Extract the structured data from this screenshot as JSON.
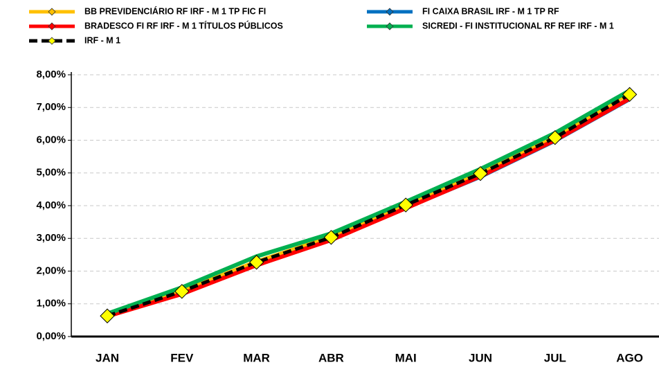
{
  "chart_data": {
    "type": "line",
    "categories": [
      "JAN",
      "FEV",
      "MAR",
      "ABR",
      "MAI",
      "JUN",
      "JUL",
      "AGO"
    ],
    "series": [
      {
        "name": "BB PREVIDENCIÁRIO RF IRF - M 1 TP FIC FI",
        "color": "#FFC000",
        "values": [
          0.64,
          1.4,
          2.3,
          3.05,
          4.05,
          5.0,
          6.1,
          7.42
        ]
      },
      {
        "name": "FI CAIXA BRASIL IRF - M 1 TP RF",
        "color": "#0070C0",
        "values": [
          0.6,
          1.28,
          2.15,
          2.95,
          3.9,
          4.85,
          5.95,
          7.22
        ]
      },
      {
        "name": "BRADESCO FI RF IRF - M 1 TÍTULOS PÚBLICOS",
        "color": "#FF0000",
        "values": [
          0.62,
          1.3,
          2.18,
          2.95,
          3.92,
          4.9,
          6.0,
          7.27
        ]
      },
      {
        "name": "SICREDI - FI INSTITUCIONAL RF REF IRF - M 1",
        "color": "#00B050",
        "values": [
          0.7,
          1.5,
          2.45,
          3.15,
          4.12,
          5.12,
          6.22,
          7.52
        ]
      },
      {
        "name": "IRF - M 1",
        "color": "#000000",
        "dash": true,
        "marker_color": "#FFFF00",
        "values": [
          0.63,
          1.38,
          2.27,
          3.03,
          4.02,
          4.98,
          6.08,
          7.4
        ]
      }
    ],
    "ylim": [
      0,
      8
    ],
    "yticks": [
      {
        "value": 0,
        "label": "0,00%"
      },
      {
        "value": 1,
        "label": "1,00%"
      },
      {
        "value": 2,
        "label": "2,00%"
      },
      {
        "value": 3,
        "label": "3,00%"
      },
      {
        "value": 4,
        "label": "4,00%"
      },
      {
        "value": 5,
        "label": "5,00%"
      },
      {
        "value": 6,
        "label": "6,00%"
      },
      {
        "value": 7,
        "label": "7,00%"
      },
      {
        "value": 8,
        "label": "8,00%"
      }
    ],
    "grid": true
  }
}
